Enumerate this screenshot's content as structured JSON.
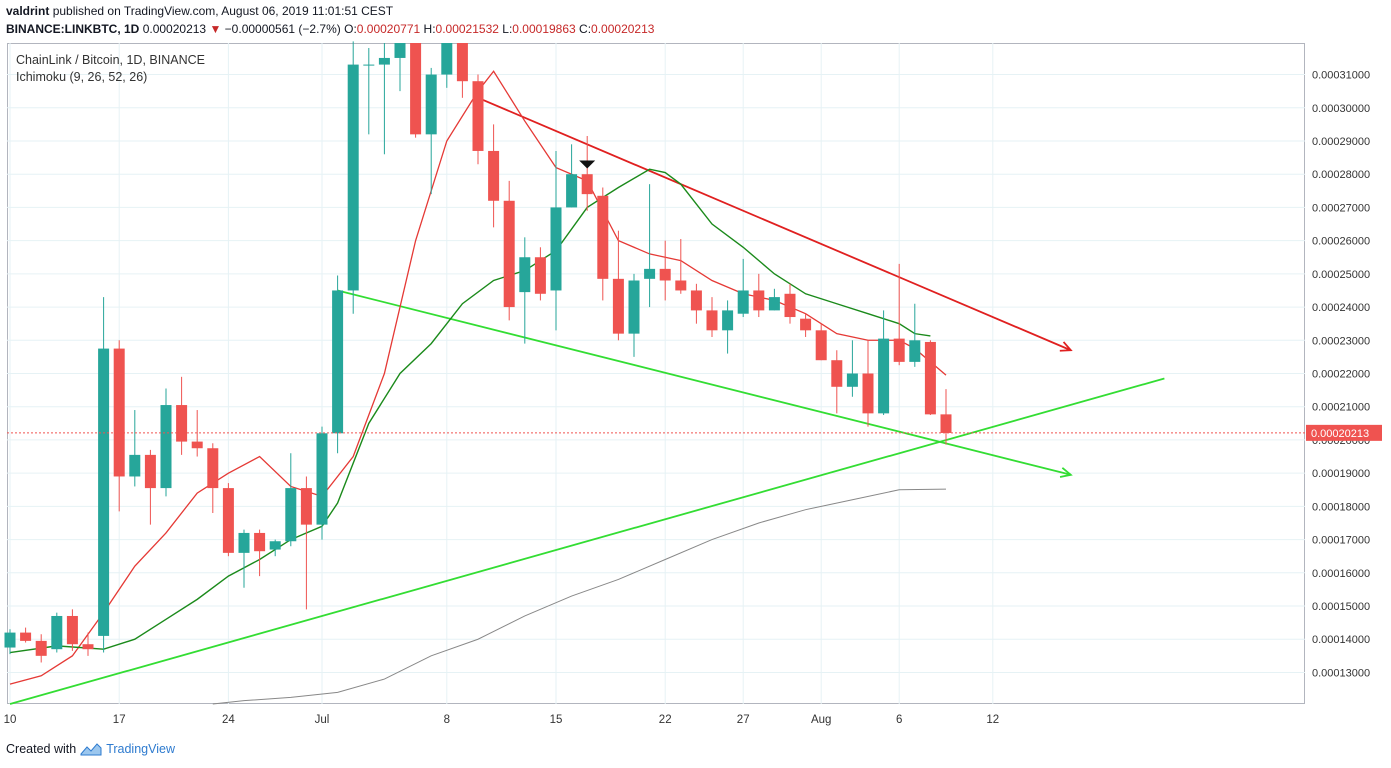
{
  "header": {
    "author": "valdrint",
    "published_text": "published on TradingView.com, August 06, 2019 11:01:51 CEST",
    "symbol": "BINANCE:LINKBTC, 1D",
    "last": "0.00020213",
    "arrow": "▼",
    "change": "−0.00000561 (−2.7%)",
    "o_label": "O:",
    "o_val": "0.00020771",
    "h_label": "H:",
    "h_val": "0.00021532",
    "l_label": "L:",
    "l_val": "0.00019863",
    "c_label": "C:",
    "c_val": "0.00020213"
  },
  "overlay": {
    "pair": "ChainLink / Bitcoin, 1D, BINANCE",
    "indicator": "Ichimoku (9, 26, 52, 26)"
  },
  "footer": {
    "created_with": "Created with",
    "brand": "TradingView"
  },
  "colors": {
    "up": "#26a69a",
    "down": "#ef5350",
    "conversion": "#e53935",
    "base": "#1b8a1b",
    "ma": "#888888",
    "resistance": "#e02020",
    "support": "#33dd33",
    "grid": "#e6f2f5"
  },
  "chart_data": {
    "type": "candlestick",
    "title": "ChainLink / Bitcoin, 1D, BINANCE",
    "ylim": [
      0.0001205,
      0.0003195
    ],
    "y_ticks": [
      "0.00013000",
      "0.00014000",
      "0.00015000",
      "0.00016000",
      "0.00017000",
      "0.00018000",
      "0.00019000",
      "0.00020000",
      "0.00021000",
      "0.00022000",
      "0.00023000",
      "0.00024000",
      "0.00025000",
      "0.00026000",
      "0.00027000",
      "0.00028000",
      "0.00029000",
      "0.00030000",
      "0.00031000"
    ],
    "x_ticks": [
      {
        "label": "10",
        "day": 10
      },
      {
        "label": "17",
        "day": 17
      },
      {
        "label": "24",
        "day": 24
      },
      {
        "label": "Jul",
        "day": 30
      },
      {
        "label": "8",
        "day": 38
      },
      {
        "label": "15",
        "day": 45
      },
      {
        "label": "22",
        "day": 52
      },
      {
        "label": "27",
        "day": 57
      },
      {
        "label": "Aug",
        "day": 62
      },
      {
        "label": "6",
        "day": 67
      },
      {
        "label": "12",
        "day": 73
      }
    ],
    "last_price": "0.00020213",
    "candles": [
      {
        "day": 10,
        "o": 0.0001375,
        "h": 0.000143,
        "l": 0.0001355,
        "c": 0.000142
      },
      {
        "day": 11,
        "o": 0.000142,
        "h": 0.0001435,
        "l": 0.000139,
        "c": 0.0001395
      },
      {
        "day": 12,
        "o": 0.0001395,
        "h": 0.0001415,
        "l": 0.000133,
        "c": 0.000135
      },
      {
        "day": 13,
        "o": 0.000137,
        "h": 0.000148,
        "l": 0.000136,
        "c": 0.000147
      },
      {
        "day": 14,
        "o": 0.000147,
        "h": 0.000149,
        "l": 0.0001365,
        "c": 0.0001385
      },
      {
        "day": 15,
        "o": 0.0001385,
        "h": 0.000142,
        "l": 0.000135,
        "c": 0.000137
      },
      {
        "day": 16,
        "o": 0.000141,
        "h": 0.000243,
        "l": 0.000136,
        "c": 0.0002275
      },
      {
        "day": 17,
        "o": 0.0002275,
        "h": 0.00023,
        "l": 0.0001785,
        "c": 0.000189
      },
      {
        "day": 18,
        "o": 0.000189,
        "h": 0.000209,
        "l": 0.000186,
        "c": 0.0001955
      },
      {
        "day": 19,
        "o": 0.0001955,
        "h": 0.000197,
        "l": 0.0001745,
        "c": 0.0001855
      },
      {
        "day": 20,
        "o": 0.0001855,
        "h": 0.0002155,
        "l": 0.000183,
        "c": 0.0002105
      },
      {
        "day": 21,
        "o": 0.0002105,
        "h": 0.000219,
        "l": 0.0001955,
        "c": 0.0001995
      },
      {
        "day": 22,
        "o": 0.0001995,
        "h": 0.000209,
        "l": 0.000195,
        "c": 0.0001975
      },
      {
        "day": 23,
        "o": 0.0001975,
        "h": 0.000199,
        "l": 0.000178,
        "c": 0.0001855
      },
      {
        "day": 24,
        "o": 0.0001855,
        "h": 0.000187,
        "l": 0.000165,
        "c": 0.000166
      },
      {
        "day": 25,
        "o": 0.000166,
        "h": 0.000173,
        "l": 0.0001555,
        "c": 0.000172
      },
      {
        "day": 26,
        "o": 0.000172,
        "h": 0.000173,
        "l": 0.000159,
        "c": 0.0001665
      },
      {
        "day": 27,
        "o": 0.000167,
        "h": 0.00017,
        "l": 0.000165,
        "c": 0.0001695
      },
      {
        "day": 28,
        "o": 0.0001695,
        "h": 0.000196,
        "l": 0.000168,
        "c": 0.0001855
      },
      {
        "day": 29,
        "o": 0.0001855,
        "h": 0.000189,
        "l": 0.000149,
        "c": 0.0001745
      },
      {
        "day": 30,
        "o": 0.0001745,
        "h": 0.000204,
        "l": 0.00017,
        "c": 0.000202
      },
      {
        "day": 31,
        "o": 0.000202,
        "h": 0.0002495,
        "l": 0.000196,
        "c": 0.000245
      },
      {
        "day": 32,
        "o": 0.000245,
        "h": 0.00032,
        "l": 0.000238,
        "c": 0.000313
      },
      {
        "day": 33,
        "o": 0.000313,
        "h": 0.000318,
        "l": 0.000292,
        "c": 0.000313
      },
      {
        "day": 34,
        "o": 0.000313,
        "h": 0.0003195,
        "l": 0.000286,
        "c": 0.000315
      },
      {
        "day": 35,
        "o": 0.000315,
        "h": 0.0003195,
        "l": 0.000305,
        "c": 0.0003195
      },
      {
        "day": 36,
        "o": 0.0003195,
        "h": 0.0003195,
        "l": 0.000291,
        "c": 0.000292
      },
      {
        "day": 37,
        "o": 0.000292,
        "h": 0.000312,
        "l": 0.000274,
        "c": 0.00031
      },
      {
        "day": 38,
        "o": 0.00031,
        "h": 0.0003195,
        "l": 0.000306,
        "c": 0.0003195
      },
      {
        "day": 39,
        "o": 0.0003195,
        "h": 0.0003195,
        "l": 0.000303,
        "c": 0.000308
      },
      {
        "day": 40,
        "o": 0.000308,
        "h": 0.00031,
        "l": 0.000283,
        "c": 0.000287
      },
      {
        "day": 41,
        "o": 0.000287,
        "h": 0.000295,
        "l": 0.000264,
        "c": 0.000272
      },
      {
        "day": 42,
        "o": 0.000272,
        "h": 0.000278,
        "l": 0.000236,
        "c": 0.00024
      },
      {
        "day": 43,
        "o": 0.0002445,
        "h": 0.000261,
        "l": 0.000229,
        "c": 0.000255
      },
      {
        "day": 44,
        "o": 0.000255,
        "h": 0.000258,
        "l": 0.000242,
        "c": 0.000244
      },
      {
        "day": 45,
        "o": 0.000245,
        "h": 0.000287,
        "l": 0.000233,
        "c": 0.00027
      },
      {
        "day": 46,
        "o": 0.00027,
        "h": 0.000289,
        "l": 0.00027,
        "c": 0.00028
      },
      {
        "day": 47,
        "o": 0.00028,
        "h": 0.0002915,
        "l": 0.000269,
        "c": 0.000274
      },
      {
        "day": 48,
        "o": 0.0002735,
        "h": 0.000276,
        "l": 0.000242,
        "c": 0.0002485
      },
      {
        "day": 49,
        "o": 0.0002485,
        "h": 0.000263,
        "l": 0.00023,
        "c": 0.000232
      },
      {
        "day": 50,
        "o": 0.000232,
        "h": 0.00025,
        "l": 0.000225,
        "c": 0.000248
      },
      {
        "day": 51,
        "o": 0.0002485,
        "h": 0.000277,
        "l": 0.00024,
        "c": 0.0002515
      },
      {
        "day": 52,
        "o": 0.0002515,
        "h": 0.00026,
        "l": 0.000242,
        "c": 0.000248
      },
      {
        "day": 53,
        "o": 0.000248,
        "h": 0.0002605,
        "l": 0.000244,
        "c": 0.000245
      },
      {
        "day": 54,
        "o": 0.000245,
        "h": 0.000247,
        "l": 0.000235,
        "c": 0.000239
      },
      {
        "day": 55,
        "o": 0.000239,
        "h": 0.000243,
        "l": 0.000231,
        "c": 0.000233
      },
      {
        "day": 56,
        "o": 0.000233,
        "h": 0.000242,
        "l": 0.000226,
        "c": 0.000239
      },
      {
        "day": 57,
        "o": 0.000238,
        "h": 0.0002545,
        "l": 0.000237,
        "c": 0.000245
      },
      {
        "day": 58,
        "o": 0.000245,
        "h": 0.00025,
        "l": 0.000237,
        "c": 0.000239
      },
      {
        "day": 59,
        "o": 0.000239,
        "h": 0.0002455,
        "l": 0.000239,
        "c": 0.000243
      },
      {
        "day": 60,
        "o": 0.000244,
        "h": 0.000247,
        "l": 0.000235,
        "c": 0.000237
      },
      {
        "day": 61,
        "o": 0.0002365,
        "h": 0.000238,
        "l": 0.000231,
        "c": 0.000233
      },
      {
        "day": 62,
        "o": 0.000233,
        "h": 0.000235,
        "l": 0.000224,
        "c": 0.000224
      },
      {
        "day": 63,
        "o": 0.000224,
        "h": 0.000227,
        "l": 0.000208,
        "c": 0.000216
      },
      {
        "day": 64,
        "o": 0.000216,
        "h": 0.00023,
        "l": 0.000213,
        "c": 0.00022
      },
      {
        "day": 65,
        "o": 0.00022,
        "h": 0.00023,
        "l": 0.000204,
        "c": 0.000208
      },
      {
        "day": 66,
        "o": 0.000208,
        "h": 0.000239,
        "l": 0.0002075,
        "c": 0.0002305
      },
      {
        "day": 67,
        "o": 0.0002305,
        "h": 0.000253,
        "l": 0.0002225,
        "c": 0.0002235
      },
      {
        "day": 68,
        "o": 0.0002235,
        "h": 0.000241,
        "l": 0.000222,
        "c": 0.00023
      },
      {
        "day": 69,
        "o": 0.0002295,
        "h": 0.00023,
        "l": 0.0002075,
        "c": 0.0002077
      },
      {
        "day": 70,
        "o": 0.0002077,
        "h": 0.0002153,
        "l": 0.0001986,
        "c": 0.0002021
      }
    ],
    "lines": [
      {
        "name": "conversion",
        "points": [
          [
            10,
            0.0001265
          ],
          [
            12,
            0.000129
          ],
          [
            14,
            0.000135
          ],
          [
            16,
            0.000148
          ],
          [
            18,
            0.000162
          ],
          [
            20,
            0.000172
          ],
          [
            22,
            0.000184
          ],
          [
            24,
            0.00019
          ],
          [
            26,
            0.000195
          ],
          [
            28,
            0.000186
          ],
          [
            30,
            0.000183
          ],
          [
            32,
            0.000195
          ],
          [
            34,
            0.00022
          ],
          [
            36,
            0.00026
          ],
          [
            38,
            0.00029
          ],
          [
            40,
            0.000305
          ],
          [
            41,
            0.000311
          ],
          [
            43,
            0.000296
          ],
          [
            45,
            0.000282
          ],
          [
            47,
            0.000278
          ],
          [
            49,
            0.00026
          ],
          [
            51,
            0.000256
          ],
          [
            53,
            0.000254
          ],
          [
            55,
            0.000248
          ],
          [
            57,
            0.000244
          ],
          [
            59,
            0.000242
          ],
          [
            61,
            0.000238
          ],
          [
            63,
            0.000232
          ],
          [
            65,
            0.00023
          ],
          [
            67,
            0.00023
          ],
          [
            68,
            0.0002275
          ],
          [
            70,
            0.0002195
          ]
        ]
      },
      {
        "name": "base",
        "points": [
          [
            10,
            0.000136
          ],
          [
            13,
            0.000138
          ],
          [
            16,
            0.000137
          ],
          [
            18,
            0.00014
          ],
          [
            20,
            0.000146
          ],
          [
            22,
            0.000152
          ],
          [
            24,
            0.000159
          ],
          [
            26,
            0.000164
          ],
          [
            28,
            0.00017
          ],
          [
            30,
            0.000174
          ],
          [
            31,
            0.000181
          ],
          [
            33,
            0.000205
          ],
          [
            35,
            0.00022
          ],
          [
            37,
            0.000229
          ],
          [
            39,
            0.000241
          ],
          [
            41,
            0.000248
          ],
          [
            43,
            0.000251
          ],
          [
            45,
            0.000257
          ],
          [
            47,
            0.00027
          ],
          [
            49,
            0.000276
          ],
          [
            51,
            0.0002815
          ],
          [
            52,
            0.0002805
          ],
          [
            53,
            0.000277
          ],
          [
            55,
            0.000265
          ],
          [
            57,
            0.000258
          ],
          [
            59,
            0.00025
          ],
          [
            61,
            0.000244
          ],
          [
            63,
            0.000241
          ],
          [
            65,
            0.000238
          ],
          [
            67,
            0.000235
          ],
          [
            68,
            0.000232
          ],
          [
            69,
            0.0002313
          ]
        ]
      },
      {
        "name": "ma",
        "points": [
          [
            23,
            0.0001205
          ],
          [
            25,
            0.0001215
          ],
          [
            28,
            0.0001225
          ],
          [
            31,
            0.000124
          ],
          [
            34,
            0.000128
          ],
          [
            37,
            0.000135
          ],
          [
            40,
            0.00014
          ],
          [
            43,
            0.000147
          ],
          [
            46,
            0.000153
          ],
          [
            49,
            0.000158
          ],
          [
            52,
            0.000164
          ],
          [
            55,
            0.00017
          ],
          [
            58,
            0.000175
          ],
          [
            61,
            0.000179
          ],
          [
            64,
            0.000182
          ],
          [
            67,
            0.000185
          ],
          [
            70,
            0.0001852
          ]
        ]
      }
    ],
    "trendlines": [
      {
        "name": "resistance-line",
        "color": "#e02020",
        "from": [
          40,
          0.000303
        ],
        "to": [
          78,
          0.000227
        ],
        "arrow": true
      },
      {
        "name": "support-upper-line",
        "color": "#33dd33",
        "from": [
          31,
          0.000245
        ],
        "to": [
          78,
          0.0001895
        ],
        "arrow": true
      },
      {
        "name": "support-rising-line",
        "color": "#33dd33",
        "from": [
          10,
          0.0001205
        ],
        "to": [
          84,
          0.0002185
        ],
        "arrow": false
      }
    ],
    "marker": {
      "day": 47,
      "y": 0.000282
    }
  }
}
